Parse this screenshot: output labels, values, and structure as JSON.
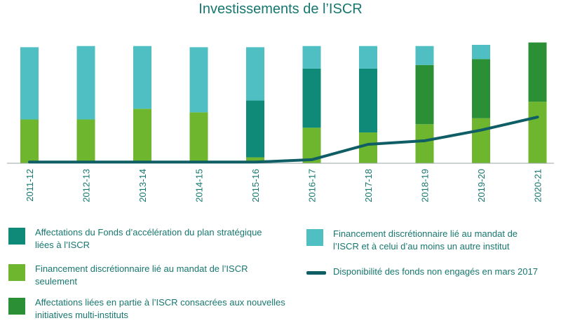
{
  "title": "Investissements de l’ISCR",
  "colors": {
    "text": "#17776f",
    "teal_dark": "#0f8a78",
    "teal_light": "#4fbfc4",
    "green_light": "#6db62d",
    "green_dark": "#2b8f36",
    "line": "#0f5e66"
  },
  "chart_data": {
    "type": "bar",
    "stacked": true,
    "categories": [
      "2011-12",
      "2012-13",
      "2013-14",
      "2014-15",
      "2015-16",
      "2016-17",
      "2017-18",
      "2018-19",
      "2019-20",
      "2020-21"
    ],
    "ylim": [
      0,
      100
    ],
    "series": [
      {
        "key": "isc_only",
        "name": "Financement discrétionnaire lié au mandat de l’ISCR seulement",
        "color": "#6db62d",
        "values": [
          37,
          37,
          46,
          43,
          5,
          30,
          26,
          33,
          38,
          52
        ]
      },
      {
        "key": "strategic",
        "name": "Affectations du Fonds d’accélération du plan stratégique liées à l’ISCR",
        "color": "#0f8a78",
        "values": [
          0,
          0,
          0,
          0,
          48,
          50,
          54,
          0,
          0,
          0
        ]
      },
      {
        "key": "multi",
        "name": "Affectations liées en partie à l’ISCR consacrées aux nouvelles initiatives multi-instituts",
        "color": "#2b8f36",
        "values": [
          0,
          0,
          0,
          0,
          0,
          0,
          0,
          50,
          50,
          50
        ]
      },
      {
        "key": "shared",
        "name": "Financement discrétionnaire lié au mandat de l’ISCR et à celui d’au moins un autre institut",
        "color": "#4fbfc4",
        "values": [
          61,
          62,
          53,
          55,
          45,
          19,
          19,
          16,
          12,
          0
        ]
      }
    ],
    "line": {
      "name": "Disponibilité des fonds non engagés en mars 2017",
      "color": "#0f5e66",
      "values": [
        1,
        1,
        1,
        1,
        1,
        3,
        16,
        19,
        28,
        39
      ]
    }
  },
  "legend": {
    "strategic": "Affectations du Fonds d’accélération du plan stratégique liées à l’ISCR",
    "isc_only": "Financement discrétionnaire lié au mandat de l’ISCR seulement",
    "multi": "Affectations liées en partie à l’ISCR consacrées aux nouvelles initiatives multi-instituts",
    "shared": "Financement discrétionnaire lié au mandat de l’ISCR et à celui d’au moins un autre institut",
    "line": "Disponibilité des fonds non engagés en mars 2017"
  }
}
